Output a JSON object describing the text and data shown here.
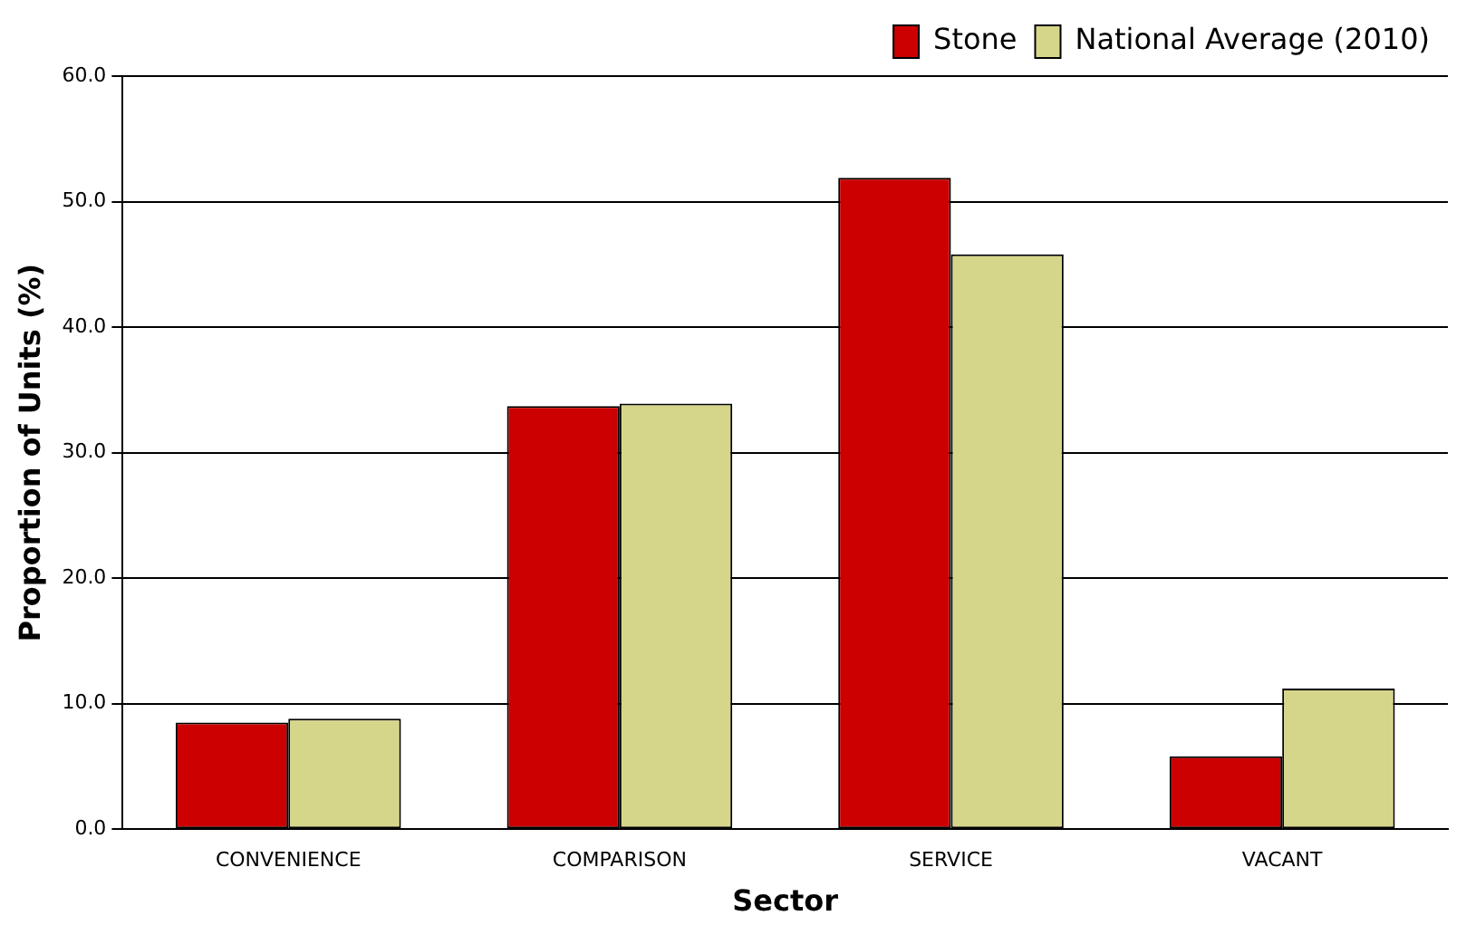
{
  "chart_data": {
    "type": "bar",
    "xlabel": "Sector",
    "ylabel": "Proportion of Units (%)",
    "categories": [
      "CONVENIENCE",
      "COMPARISON",
      "SERVICE",
      "VACANT"
    ],
    "series": [
      {
        "name": "Stone",
        "color": "#cc0000",
        "values": [
          8.5,
          33.7,
          51.9,
          5.8
        ]
      },
      {
        "name": "National Average (2010)",
        "color": "#d6d68a",
        "values": [
          8.8,
          33.9,
          45.8,
          11.2
        ]
      }
    ],
    "ylim": [
      0,
      60
    ],
    "yticks": [
      {
        "value": 0,
        "label": "0.0"
      },
      {
        "value": 10,
        "label": "10.0"
      },
      {
        "value": 20,
        "label": "20.0"
      },
      {
        "value": 30,
        "label": "30.0"
      },
      {
        "value": 40,
        "label": "40.0"
      },
      {
        "value": 50,
        "label": "50.0"
      },
      {
        "value": 60,
        "label": "60.0"
      }
    ],
    "grid": "y",
    "legend": "top right"
  }
}
